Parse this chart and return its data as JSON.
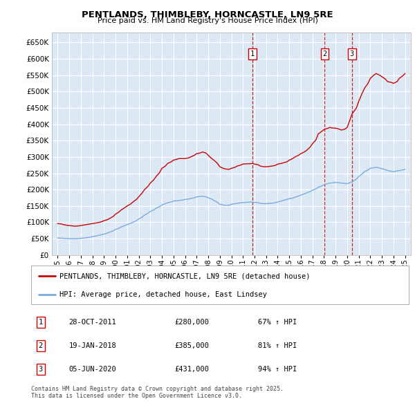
{
  "title": "PENTLANDS, THIMBLEBY, HORNCASTLE, LN9 5RE",
  "subtitle": "Price paid vs. HM Land Registry's House Price Index (HPI)",
  "bg_color": "#dce9f5",
  "red_line_color": "#cc0000",
  "blue_line_color": "#7aaadd",
  "grid_color": "#ffffff",
  "ylim": [
    0,
    680000
  ],
  "yticks": [
    0,
    50000,
    100000,
    150000,
    200000,
    250000,
    300000,
    350000,
    400000,
    450000,
    500000,
    550000,
    600000,
    650000
  ],
  "xlim_start": 1994.5,
  "xlim_end": 2025.5,
  "xticks": [
    1995,
    1996,
    1997,
    1998,
    1999,
    2000,
    2001,
    2002,
    2003,
    2004,
    2005,
    2006,
    2007,
    2008,
    2009,
    2010,
    2011,
    2012,
    2013,
    2014,
    2015,
    2016,
    2017,
    2018,
    2019,
    2020,
    2021,
    2022,
    2023,
    2024,
    2025
  ],
  "legend_line1": "PENTLANDS, THIMBLEBY, HORNCASTLE, LN9 5RE (detached house)",
  "legend_line2": "HPI: Average price, detached house, East Lindsey",
  "sale_labels": [
    {
      "num": 1,
      "date": "28-OCT-2011",
      "price": "£280,000",
      "hpi": "67% ↑ HPI",
      "x": 2011.83
    },
    {
      "num": 2,
      "date": "19-JAN-2018",
      "price": "£385,000",
      "hpi": "81% ↑ HPI",
      "x": 2018.05
    },
    {
      "num": 3,
      "date": "05-JUN-2020",
      "price": "£431,000",
      "hpi": "94% ↑ HPI",
      "x": 2020.42
    }
  ],
  "footer": "Contains HM Land Registry data © Crown copyright and database right 2025.\nThis data is licensed under the Open Government Licence v3.0.",
  "red_data": {
    "x": [
      1995.0,
      1995.3,
      1995.5,
      1995.8,
      1996.0,
      1996.3,
      1996.5,
      1996.8,
      1997.0,
      1997.3,
      1997.5,
      1997.8,
      1998.0,
      1998.3,
      1998.5,
      1998.8,
      1999.0,
      1999.3,
      1999.5,
      1999.8,
      2000.0,
      2000.3,
      2000.5,
      2000.8,
      2001.0,
      2001.3,
      2001.5,
      2001.8,
      2002.0,
      2002.3,
      2002.5,
      2002.8,
      2003.0,
      2003.3,
      2003.5,
      2003.8,
      2004.0,
      2004.3,
      2004.5,
      2004.8,
      2005.0,
      2005.3,
      2005.5,
      2005.8,
      2006.0,
      2006.3,
      2006.5,
      2006.8,
      2007.0,
      2007.3,
      2007.5,
      2007.8,
      2008.0,
      2008.3,
      2008.5,
      2008.8,
      2009.0,
      2009.3,
      2009.5,
      2009.8,
      2010.0,
      2010.3,
      2010.5,
      2010.8,
      2011.0,
      2011.3,
      2011.5,
      2011.83,
      2012.0,
      2012.3,
      2012.5,
      2012.8,
      2013.0,
      2013.3,
      2013.5,
      2013.8,
      2014.0,
      2014.3,
      2014.5,
      2014.8,
      2015.0,
      2015.3,
      2015.5,
      2015.8,
      2016.0,
      2016.3,
      2016.5,
      2016.8,
      2017.0,
      2017.3,
      2017.5,
      2017.8,
      2018.05,
      2018.3,
      2018.5,
      2018.8,
      2019.0,
      2019.3,
      2019.5,
      2019.8,
      2020.0,
      2020.42,
      2020.5,
      2020.8,
      2021.0,
      2021.3,
      2021.5,
      2021.8,
      2022.0,
      2022.3,
      2022.5,
      2022.8,
      2023.0,
      2023.3,
      2023.5,
      2023.8,
      2024.0,
      2024.3,
      2024.5,
      2024.8,
      2025.0
    ],
    "y": [
      96000,
      95000,
      93000,
      91000,
      90000,
      89000,
      88000,
      89000,
      90000,
      92000,
      93000,
      95000,
      96000,
      98000,
      99000,
      102000,
      105000,
      108000,
      112000,
      118000,
      125000,
      132000,
      138000,
      145000,
      150000,
      156000,
      162000,
      170000,
      178000,
      190000,
      200000,
      210000,
      220000,
      230000,
      240000,
      252000,
      265000,
      272000,
      280000,
      285000,
      290000,
      293000,
      295000,
      295000,
      295000,
      297000,
      300000,
      305000,
      310000,
      312000,
      315000,
      312000,
      305000,
      295000,
      290000,
      280000,
      270000,
      265000,
      263000,
      262000,
      265000,
      268000,
      272000,
      275000,
      278000,
      279000,
      279000,
      280000,
      278000,
      276000,
      272000,
      270000,
      270000,
      271000,
      272000,
      274000,
      278000,
      280000,
      282000,
      285000,
      290000,
      295000,
      300000,
      305000,
      310000,
      315000,
      320000,
      330000,
      340000,
      352000,
      370000,
      378000,
      385000,
      387000,
      390000,
      388000,
      388000,
      385000,
      382000,
      385000,
      390000,
      431000,
      435000,
      450000,
      470000,
      495000,
      510000,
      525000,
      540000,
      550000,
      555000,
      550000,
      545000,
      538000,
      530000,
      528000,
      525000,
      530000,
      540000,
      548000,
      555000
    ]
  },
  "blue_data": {
    "x": [
      1995.0,
      1995.3,
      1995.5,
      1995.8,
      1996.0,
      1996.3,
      1996.5,
      1996.8,
      1997.0,
      1997.3,
      1997.5,
      1997.8,
      1998.0,
      1998.3,
      1998.5,
      1998.8,
      1999.0,
      1999.3,
      1999.5,
      1999.8,
      2000.0,
      2000.3,
      2000.5,
      2000.8,
      2001.0,
      2001.3,
      2001.5,
      2001.8,
      2002.0,
      2002.3,
      2002.5,
      2002.8,
      2003.0,
      2003.3,
      2003.5,
      2003.8,
      2004.0,
      2004.3,
      2004.5,
      2004.8,
      2005.0,
      2005.3,
      2005.5,
      2005.8,
      2006.0,
      2006.3,
      2006.5,
      2006.8,
      2007.0,
      2007.3,
      2007.5,
      2007.8,
      2008.0,
      2008.3,
      2008.5,
      2008.8,
      2009.0,
      2009.3,
      2009.5,
      2009.8,
      2010.0,
      2010.3,
      2010.5,
      2010.8,
      2011.0,
      2011.3,
      2011.5,
      2011.8,
      2012.0,
      2012.3,
      2012.5,
      2012.8,
      2013.0,
      2013.3,
      2013.5,
      2013.8,
      2014.0,
      2014.3,
      2014.5,
      2014.8,
      2015.0,
      2015.3,
      2015.5,
      2015.8,
      2016.0,
      2016.3,
      2016.5,
      2016.8,
      2017.0,
      2017.3,
      2017.5,
      2017.8,
      2018.0,
      2018.3,
      2018.5,
      2018.8,
      2019.0,
      2019.3,
      2019.5,
      2019.8,
      2020.0,
      2020.3,
      2020.5,
      2020.8,
      2021.0,
      2021.3,
      2021.5,
      2021.8,
      2022.0,
      2022.3,
      2022.5,
      2022.8,
      2023.0,
      2023.3,
      2023.5,
      2023.8,
      2024.0,
      2024.3,
      2024.5,
      2024.8,
      2025.0
    ],
    "y": [
      52000,
      51500,
      51000,
      50500,
      50000,
      50000,
      50000,
      50500,
      51000,
      52000,
      53000,
      54500,
      56000,
      58000,
      60000,
      62000,
      64000,
      67000,
      70000,
      74000,
      78000,
      82000,
      86000,
      90000,
      93000,
      97000,
      100000,
      105000,
      110000,
      116000,
      122000,
      128000,
      133000,
      138000,
      143000,
      148000,
      153000,
      157000,
      160000,
      162000,
      165000,
      166000,
      167000,
      168000,
      170000,
      171000,
      173000,
      175000,
      178000,
      179000,
      180000,
      178000,
      175000,
      171000,
      167000,
      161000,
      155000,
      153000,
      152000,
      152000,
      155000,
      157000,
      158000,
      160000,
      160000,
      161000,
      162000,
      162000,
      161000,
      160000,
      158000,
      157000,
      157000,
      158000,
      158000,
      160000,
      162000,
      165000,
      167000,
      170000,
      172000,
      174000,
      177000,
      180000,
      183000,
      187000,
      190000,
      194000,
      198000,
      202000,
      207000,
      211000,
      215000,
      218000,
      220000,
      221000,
      222000,
      221000,
      220000,
      219000,
      218000,
      222000,
      225000,
      232000,
      240000,
      248000,
      255000,
      260000,
      265000,
      267000,
      268000,
      266000,
      264000,
      261000,
      258000,
      256000,
      255000,
      257000,
      258000,
      260000,
      262000
    ]
  }
}
